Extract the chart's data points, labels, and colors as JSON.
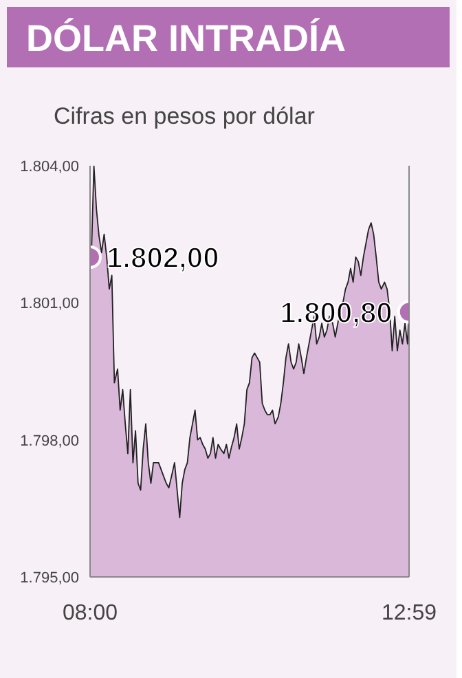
{
  "chart_data": {
    "type": "area",
    "title": "DÓLAR INTRADÍA",
    "subtitle": "Cifras en pesos por dólar",
    "x": [
      8.0,
      8.02,
      8.06,
      8.1,
      8.14,
      8.18,
      8.22,
      8.26,
      8.3,
      8.34,
      8.38,
      8.43,
      8.47,
      8.51,
      8.55,
      8.59,
      8.63,
      8.67,
      8.71,
      8.75,
      8.79,
      8.83,
      8.87,
      8.91,
      8.95,
      8.99,
      9.03,
      9.07,
      9.11,
      9.15,
      9.19,
      9.23,
      9.28,
      9.32,
      9.36,
      9.4,
      9.44,
      9.48,
      9.52,
      9.56,
      9.6,
      9.64,
      9.68,
      9.72,
      9.76,
      9.8,
      9.84,
      9.88,
      9.92,
      9.96,
      10.0,
      10.04,
      10.09,
      10.13,
      10.17,
      10.21,
      10.25,
      10.29,
      10.33,
      10.37,
      10.41,
      10.45,
      10.49,
      10.53,
      10.57,
      10.61,
      10.65,
      10.69,
      10.73,
      10.77,
      10.81,
      10.85,
      10.89,
      10.94,
      10.98,
      11.02,
      11.06,
      11.1,
      11.14,
      11.18,
      11.22,
      11.26,
      11.3,
      11.34,
      11.38,
      11.42,
      11.46,
      11.5,
      11.54,
      11.58,
      11.62,
      11.66,
      11.7,
      11.74,
      11.79,
      11.83,
      11.87,
      11.91,
      11.95,
      11.99,
      12.03,
      12.07,
      12.11,
      12.15,
      12.19,
      12.23,
      12.27,
      12.31,
      12.35,
      12.39,
      12.43,
      12.47,
      12.51,
      12.55,
      12.6,
      12.64,
      12.68,
      12.72,
      12.76,
      12.8,
      12.84,
      12.88,
      12.92,
      12.96,
      12.98
    ],
    "values": [
      1802.0,
      1802.0,
      1804.0,
      1803.04,
      1802.46,
      1802.1,
      1802.5,
      1802.0,
      1801.3,
      1801.6,
      1799.25,
      1799.55,
      1798.65,
      1799.1,
      1798.35,
      1797.7,
      1799.1,
      1797.5,
      1798.2,
      1797.05,
      1796.9,
      1797.8,
      1798.35,
      1797.5,
      1797.05,
      1797.5,
      1797.5,
      1797.5,
      1797.35,
      1797.2,
      1797.05,
      1796.95,
      1797.25,
      1797.5,
      1796.9,
      1796.3,
      1797.05,
      1797.35,
      1797.5,
      1798.05,
      1798.35,
      1798.65,
      1798.0,
      1798.05,
      1797.9,
      1797.8,
      1797.6,
      1797.7,
      1798.05,
      1797.6,
      1797.9,
      1797.8,
      1797.7,
      1797.9,
      1797.6,
      1797.85,
      1798.05,
      1798.35,
      1797.8,
      1798.05,
      1798.35,
      1799.1,
      1799.25,
      1799.8,
      1799.9,
      1799.8,
      1799.7,
      1798.8,
      1798.65,
      1798.55,
      1798.55,
      1798.65,
      1798.35,
      1798.5,
      1798.8,
      1799.25,
      1799.8,
      1800.1,
      1799.7,
      1799.55,
      1799.7,
      1800.1,
      1799.8,
      1799.45,
      1799.8,
      1800.1,
      1800.4,
      1800.7,
      1800.1,
      1800.25,
      1800.55,
      1800.25,
      1800.4,
      1800.7,
      1800.55,
      1800.25,
      1800.55,
      1800.85,
      1801.0,
      1801.3,
      1801.45,
      1801.75,
      1801.45,
      1802.0,
      1801.9,
      1801.6,
      1802.0,
      1802.3,
      1802.6,
      1802.75,
      1802.5,
      1802.0,
      1801.45,
      1801.3,
      1801.45,
      1801.3,
      1800.85,
      1799.95,
      1800.7,
      1799.95,
      1800.4,
      1800.1,
      1800.55,
      1800.1,
      1800.8
    ],
    "color": "#d9b8d9",
    "xlim": [
      8.0,
      12.9833
    ],
    "xticks": [
      {
        "value": 8.0,
        "label": "08:00"
      },
      {
        "value": 12.9833,
        "label": "12:59"
      }
    ],
    "ylim": [
      1795,
      1804
    ],
    "yticks": [
      {
        "value": 1795,
        "label": "1.795,00"
      },
      {
        "value": 1798,
        "label": "1.798,00"
      },
      {
        "value": 1801,
        "label": "1.801,00"
      },
      {
        "value": 1804,
        "label": "1.804,00"
      }
    ],
    "grid": false,
    "annotations": [
      {
        "text": "1.802,00",
        "x": 8.0,
        "y": 1802.0
      },
      {
        "text": "1.800,80",
        "x": 12.98,
        "y": 1800.8
      }
    ]
  }
}
